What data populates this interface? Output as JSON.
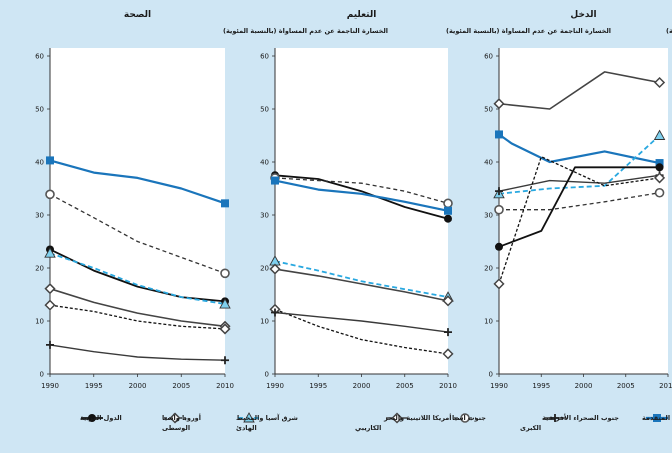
{
  "chart_data": {
    "type": "line",
    "subtitle": "الخسارة الناجمة عن عدم المساواة (بالنسبة المئوية)",
    "xticks": [
      "1990",
      "1995",
      "2000",
      "2005",
      "2010"
    ],
    "yticks": [
      "0",
      "10",
      "20",
      "30",
      "40",
      "50",
      "60"
    ],
    "ylim": [
      0,
      60
    ],
    "legend_position": "bottom",
    "colors": {
      "developed": "#1a75bb",
      "ssa": "#3a3a3a",
      "south_asia": "#333333",
      "latin": "#444444",
      "east_asia": "#29a8e0",
      "arab": "#111111"
    },
    "legend": [
      {
        "key": "developed",
        "label": "البلدان المتقدمة"
      },
      {
        "key": "ssa",
        "label": "جنوب الصحراء الأفريقية الكبرى"
      },
      {
        "key": "south_asia",
        "label": "جنوب آسيا"
      },
      {
        "key": "latin",
        "label": "أمريكا اللاتينية والبحر الكاريبي"
      },
      {
        "key": "east_asia",
        "label": "شرق آسيا والمحيط الهادئ"
      },
      {
        "key": "europe",
        "label": "أوروبا وآسيا الوسطى"
      },
      {
        "key": "arab",
        "label": "الدول العربية"
      }
    ],
    "panels": [
      {
        "title": "الصحة",
        "series": [
          {
            "key": "developed",
            "x": [
              1990,
              1995,
              2000,
              2005,
              2010
            ],
            "y": [
              40.3,
              38,
              37,
              35,
              32.2
            ]
          },
          {
            "key": "south_asia",
            "x": [
              1990,
              1995,
              2000,
              2005,
              2010
            ],
            "y": [
              33.9,
              29.5,
              25,
              22,
              19
            ]
          },
          {
            "key": "arab",
            "x": [
              1990,
              1995,
              2000,
              2005,
              2010
            ],
            "y": [
              23.5,
              19.5,
              16.5,
              14.5,
              13.7
            ]
          },
          {
            "key": "east_asia",
            "x": [
              1990,
              1995,
              2000,
              2005,
              2010
            ],
            "y": [
              22.8,
              20,
              16.8,
              14.5,
              13.2
            ]
          },
          {
            "key": "latin",
            "x": [
              1990,
              1995,
              2000,
              2005,
              2010
            ],
            "y": [
              16.1,
              13.5,
              11.5,
              10,
              9
            ]
          },
          {
            "key": "europe",
            "x": [
              1990,
              1995,
              2000,
              2005,
              2010
            ],
            "y": [
              13,
              11.8,
              10,
              9,
              8.5
            ]
          },
          {
            "key": "ssa",
            "x": [
              1990,
              1995,
              2000,
              2005,
              2010
            ],
            "y": [
              5.5,
              4.2,
              3.2,
              2.8,
              2.6
            ]
          }
        ]
      },
      {
        "title": "التعليم",
        "series": [
          {
            "key": "arab",
            "x": [
              1990,
              1995,
              2000,
              2005,
              2010
            ],
            "y": [
              37.5,
              36.8,
              34.5,
              31.5,
              29.3
            ]
          },
          {
            "key": "south_asia",
            "x": [
              1990,
              1995,
              2000,
              2005,
              2010
            ],
            "y": [
              37,
              36.5,
              36,
              34.5,
              32.2
            ]
          },
          {
            "key": "developed",
            "x": [
              1990,
              1995,
              2000,
              2005,
              2010
            ],
            "y": [
              36.5,
              34.8,
              34,
              32.5,
              30.8
            ]
          },
          {
            "key": "east_asia",
            "x": [
              1990,
              1995,
              2000,
              2005,
              2010
            ],
            "y": [
              21.3,
              19.5,
              17.5,
              16,
              14.5
            ]
          },
          {
            "key": "latin",
            "x": [
              1990,
              1995,
              2000,
              2005,
              2010
            ],
            "y": [
              19.8,
              18.5,
              17,
              15.5,
              13.8
            ]
          },
          {
            "key": "europe",
            "x": [
              1990,
              1995,
              2000,
              2005,
              2010
            ],
            "y": [
              12.2,
              9,
              6.5,
              5,
              3.8
            ]
          },
          {
            "key": "ssa",
            "x": [
              1990,
              1995,
              2000,
              2005,
              2010
            ],
            "y": [
              11.6,
              10.8,
              10,
              9,
              7.9
            ]
          }
        ]
      },
      {
        "title": "الدخل",
        "series": [
          {
            "key": "latin",
            "x": [
              1990,
              1996,
              2002.5,
              2009
            ],
            "y": [
              51,
              50,
              57,
              55
            ]
          },
          {
            "key": "developed",
            "x": [
              1990,
              1991.5,
              1996,
              2002.5,
              2009
            ],
            "y": [
              45.2,
              43.5,
              40,
              42,
              39.8
            ]
          },
          {
            "key": "east_asia",
            "x": [
              1990,
              1996,
              2002.5,
              2009
            ],
            "y": [
              34,
              35,
              35.5,
              45
            ]
          },
          {
            "key": "ssa",
            "x": [
              1990,
              1996,
              2002.5,
              2009
            ],
            "y": [
              34.5,
              36.5,
              36,
              37.5
            ]
          },
          {
            "key": "south_asia",
            "x": [
              1990,
              1996,
              2002.5,
              2009
            ],
            "y": [
              31,
              31,
              32.5,
              34.2
            ]
          },
          {
            "key": "europe",
            "x": [
              1990,
              1995,
              2002.5,
              2009
            ],
            "y": [
              17,
              41,
              35.5,
              37
            ]
          },
          {
            "key": "arab",
            "x": [
              1990,
              1995,
              1999,
              2009
            ],
            "y": [
              24,
              27,
              39,
              39
            ]
          }
        ]
      }
    ]
  }
}
